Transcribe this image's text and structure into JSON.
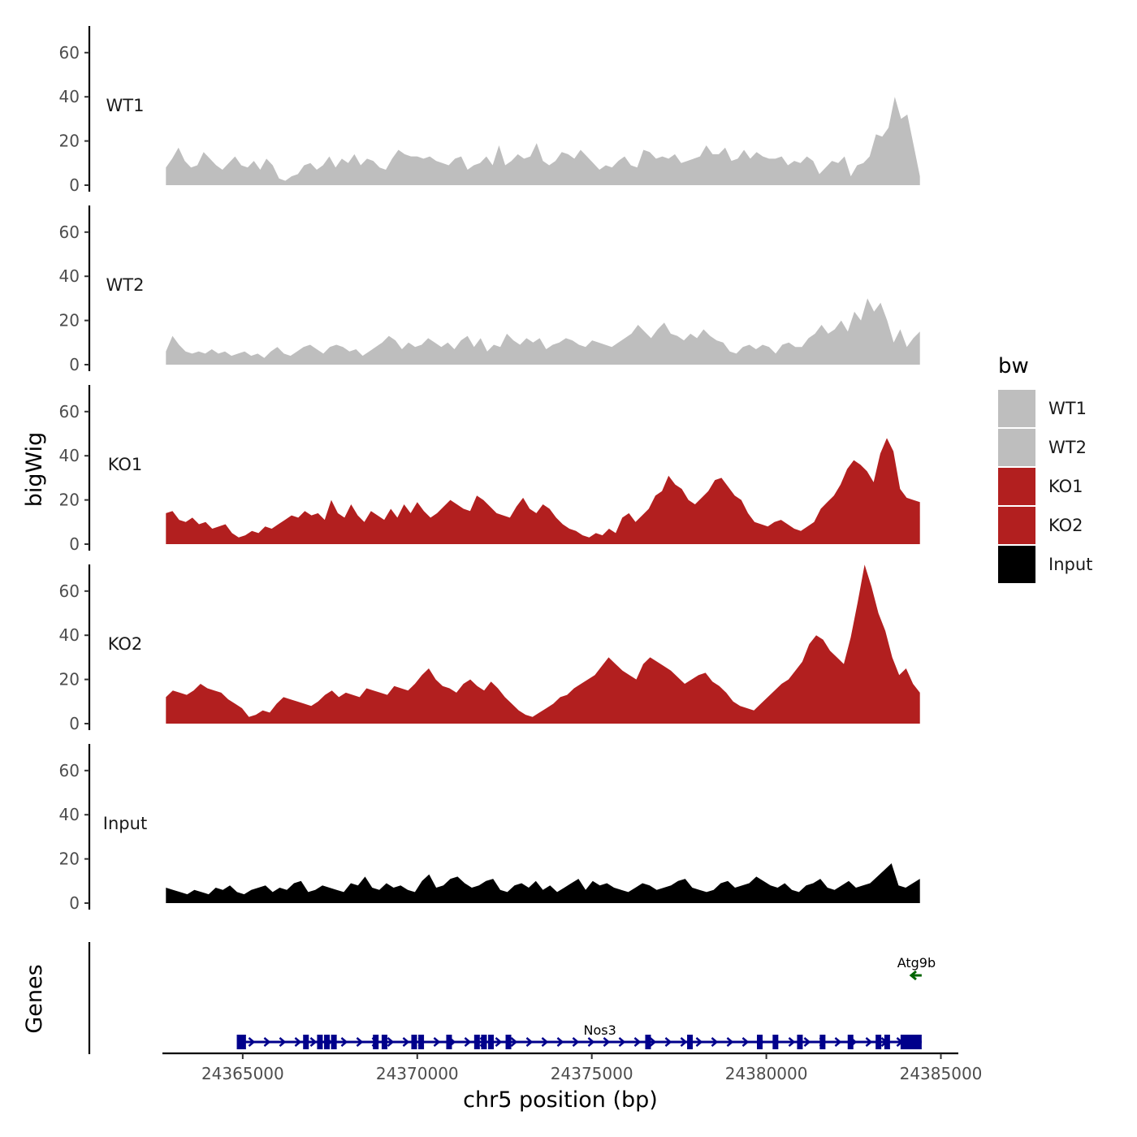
{
  "chart_data": {
    "type": "area",
    "title": "",
    "xlabel": "chr5 position (bp)",
    "ylabel": "bigWig",
    "genes_label": "Genes",
    "xlim": [
      24362700,
      24385500
    ],
    "ylim": [
      0,
      75
    ],
    "x_ticks": [
      24365000,
      24370000,
      24375000,
      24380000,
      24385000
    ],
    "x_tick_labels": [
      "24365000",
      "24370000",
      "24375000",
      "24380000",
      "24385000"
    ],
    "y_ticks": [
      0,
      20,
      40,
      60
    ],
    "y_tick_labels": [
      "0",
      "20",
      "40",
      "60"
    ],
    "track_x_range": [
      24362800,
      24384400
    ],
    "legend": {
      "title": "bw",
      "position": "right",
      "entries": [
        "WT1",
        "WT2",
        "KO1",
        "KO2",
        "Input"
      ]
    },
    "series": [
      {
        "name": "WT1",
        "color": "#bebebe",
        "values": [
          8,
          12,
          17,
          11,
          8,
          9,
          15,
          12,
          9,
          7,
          10,
          13,
          9,
          8,
          11,
          7,
          12,
          9,
          3,
          2,
          4,
          5,
          9,
          10,
          7,
          9,
          13,
          8,
          12,
          10,
          14,
          9,
          12,
          11,
          8,
          7,
          12,
          16,
          14,
          13,
          13,
          12,
          13,
          11,
          10,
          9,
          12,
          13,
          7,
          9,
          10,
          13,
          9,
          18,
          9,
          11,
          14,
          12,
          13,
          19,
          11,
          9,
          11,
          15,
          14,
          12,
          16,
          13,
          10,
          7,
          9,
          8,
          11,
          13,
          9,
          8,
          16,
          15,
          12,
          13,
          12,
          14,
          10,
          11,
          12,
          13,
          18,
          14,
          14,
          17,
          11,
          12,
          16,
          12,
          15,
          13,
          12,
          12,
          13,
          9,
          11,
          10,
          13,
          11,
          5,
          8,
          11,
          10,
          13,
          4,
          9,
          10,
          13,
          23,
          22,
          26,
          40,
          30,
          32,
          18,
          4
        ],
        "_note": "values estimated"
      },
      {
        "name": "WT2",
        "color": "#bebebe",
        "values": [
          6,
          13,
          9,
          6,
          5,
          6,
          5,
          7,
          5,
          6,
          4,
          5,
          6,
          4,
          5,
          3,
          6,
          8,
          5,
          4,
          6,
          8,
          9,
          7,
          5,
          8,
          9,
          8,
          6,
          7,
          4,
          6,
          8,
          10,
          13,
          11,
          7,
          10,
          8,
          9,
          12,
          10,
          8,
          10,
          7,
          11,
          13,
          8,
          12,
          6,
          9,
          8,
          14,
          11,
          9,
          12,
          10,
          12,
          7,
          9,
          10,
          12,
          11,
          9,
          8,
          11,
          10,
          9,
          8,
          10,
          12,
          14,
          18,
          15,
          12,
          16,
          19,
          14,
          13,
          11,
          14,
          12,
          16,
          13,
          11,
          10,
          6,
          5,
          8,
          9,
          7,
          9,
          8,
          5,
          9,
          10,
          8,
          8,
          12,
          14,
          18,
          14,
          16,
          20,
          15,
          24,
          20,
          30,
          24,
          28,
          20,
          10,
          16,
          8,
          12,
          15
        ]
      },
      {
        "name": "KO1",
        "color": "#b21f1f",
        "values": [
          14,
          15,
          11,
          10,
          12,
          9,
          10,
          7,
          8,
          9,
          5,
          3,
          4,
          6,
          5,
          8,
          7,
          9,
          11,
          13,
          12,
          15,
          13,
          14,
          11,
          20,
          14,
          12,
          18,
          13,
          10,
          15,
          13,
          11,
          16,
          12,
          18,
          14,
          19,
          15,
          12,
          14,
          17,
          20,
          18,
          16,
          15,
          22,
          20,
          17,
          14,
          13,
          12,
          17,
          21,
          16,
          14,
          18,
          16,
          12,
          9,
          7,
          6,
          4,
          3,
          5,
          4,
          7,
          5,
          12,
          14,
          10,
          13,
          16,
          22,
          24,
          31,
          27,
          25,
          20,
          18,
          21,
          24,
          29,
          30,
          26,
          22,
          20,
          14,
          10,
          9,
          8,
          10,
          11,
          9,
          7,
          6,
          8,
          10,
          16,
          19,
          22,
          27,
          34,
          38,
          36,
          33,
          28,
          41,
          48,
          42,
          25,
          21,
          20,
          19
        ]
      },
      {
        "name": "KO2",
        "color": "#b21f1f",
        "values": [
          12,
          15,
          14,
          13,
          15,
          18,
          16,
          15,
          14,
          11,
          9,
          7,
          3,
          4,
          6,
          5,
          9,
          12,
          11,
          10,
          9,
          8,
          10,
          13,
          15,
          12,
          14,
          13,
          12,
          16,
          15,
          14,
          13,
          17,
          16,
          15,
          18,
          22,
          25,
          20,
          17,
          16,
          14,
          18,
          20,
          17,
          15,
          19,
          16,
          12,
          9,
          6,
          4,
          3,
          5,
          7,
          9,
          12,
          13,
          16,
          18,
          20,
          22,
          26,
          30,
          27,
          24,
          22,
          20,
          27,
          30,
          28,
          26,
          24,
          21,
          18,
          20,
          22,
          23,
          19,
          17,
          14,
          10,
          8,
          7,
          6,
          9,
          12,
          15,
          18,
          20,
          24,
          28,
          36,
          40,
          38,
          33,
          30,
          27,
          39,
          55,
          72,
          62,
          50,
          42,
          30,
          22,
          25,
          18,
          14
        ]
      },
      {
        "name": "Input",
        "color": "#000000",
        "values": [
          7,
          6,
          5,
          4,
          6,
          5,
          4,
          7,
          6,
          8,
          5,
          4,
          6,
          7,
          8,
          5,
          7,
          6,
          9,
          10,
          5,
          6,
          8,
          7,
          6,
          5,
          9,
          8,
          12,
          7,
          6,
          9,
          7,
          8,
          6,
          5,
          10,
          13,
          7,
          8,
          11,
          12,
          9,
          7,
          8,
          10,
          11,
          6,
          5,
          8,
          9,
          7,
          10,
          6,
          8,
          5,
          7,
          9,
          11,
          6,
          10,
          8,
          9,
          7,
          6,
          5,
          7,
          9,
          8,
          6,
          7,
          8,
          10,
          11,
          7,
          6,
          5,
          6,
          9,
          10,
          7,
          8,
          9,
          12,
          10,
          8,
          7,
          9,
          6,
          5,
          8,
          9,
          11,
          7,
          6,
          8,
          10,
          7,
          8,
          9,
          12,
          15,
          18,
          8,
          7,
          9,
          11
        ]
      }
    ],
    "genes": [
      {
        "name": "Nos3",
        "start": 24364850,
        "end": 24384450,
        "strand": "+",
        "color": "#00008b",
        "exons": [
          24364900,
          24365000,
          24366800,
          24367200,
          24367400,
          24367600,
          24368800,
          24369050,
          24369900,
          24370100,
          24370900,
          24371700,
          24371900,
          24372100,
          24372600,
          24376600,
          24377800,
          24379800,
          24380250,
          24380950,
          24381600,
          24382400,
          24383200,
          24383450
        ]
      },
      {
        "name": "Atg9b",
        "start": 24384150,
        "end": 24384450,
        "strand": "-",
        "color": "#006400",
        "exons": []
      }
    ]
  }
}
